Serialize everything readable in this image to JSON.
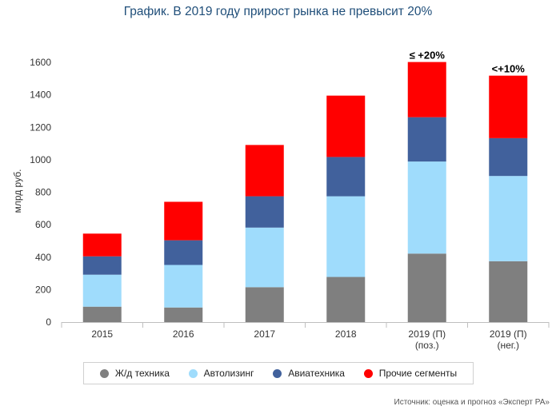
{
  "title": "График. В 2019 году прирост рынка не превысит 20%",
  "source": "Источник: оценка и прогноз «Эксперт РА»",
  "colors": {
    "axis": "#bfbfbf",
    "tick": "#333333"
  },
  "chart_data": {
    "type": "bar",
    "stacked": true,
    "title": "График. В 2019 году прирост рынка не превысит 20%",
    "ylabel": "млрд руб.",
    "ylim": [
      0,
      1600
    ],
    "yticks": [
      "0",
      "200",
      "400",
      "600",
      "800",
      "1000",
      "1200",
      "1400",
      "1600"
    ],
    "categories": [
      [
        "2015"
      ],
      [
        "2016"
      ],
      [
        "2017"
      ],
      [
        "2018"
      ],
      [
        "2019 (П)",
        "(поз.)"
      ],
      [
        "2019 (П)",
        "(нег.)"
      ]
    ],
    "series": [
      {
        "name": "Ж/д техника",
        "color": "#7f7f7f",
        "values": [
          95,
          90,
          215,
          278,
          422,
          375
        ]
      },
      {
        "name": "Автолизинг",
        "color": "#9fdcfc",
        "values": [
          197,
          262,
          367,
          497,
          567,
          525
        ]
      },
      {
        "name": "Авиатехника",
        "color": "#41619c",
        "values": [
          113,
          152,
          193,
          242,
          273,
          233
        ]
      },
      {
        "name": "Прочие сегменты",
        "color": "#ff0000",
        "values": [
          140,
          237,
          316,
          378,
          340,
          385
        ]
      }
    ],
    "annotations": [
      {
        "category_index": 4,
        "text": "≤ +20%"
      },
      {
        "category_index": 5,
        "text": "<+10%"
      }
    ],
    "grid": false,
    "legend": "bottom"
  }
}
